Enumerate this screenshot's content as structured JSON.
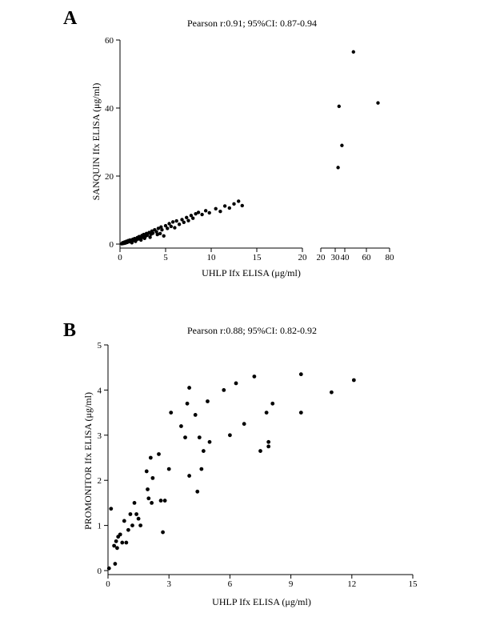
{
  "chart_data": [
    {
      "type": "scatter",
      "panel": "A",
      "title": "Pearson r:0.91; 95%CI: 0.87-0.94",
      "xlabel": "UHLP Ifx ELISA (μg/ml)",
      "ylabel": "SANQUIN Ifx ELISA (μg/ml)",
      "xlim_segments": [
        [
          0,
          20
        ],
        [
          20,
          80
        ]
      ],
      "x_ticks_segment1": [
        "0",
        "5",
        "10",
        "15",
        "20"
      ],
      "x_ticks_segment2": [
        "20",
        "30",
        "40",
        "60",
        "80"
      ],
      "ylim": [
        0,
        60
      ],
      "y_ticks": [
        "0",
        "20",
        "40",
        "60"
      ],
      "grid": false,
      "points": [
        [
          0.2,
          0.1
        ],
        [
          0.3,
          0.4
        ],
        [
          0.4,
          0.2
        ],
        [
          0.5,
          0.6
        ],
        [
          0.6,
          0.3
        ],
        [
          0.7,
          0.8
        ],
        [
          0.8,
          0.5
        ],
        [
          0.9,
          1.0
        ],
        [
          1.0,
          0.7
        ],
        [
          1.1,
          1.2
        ],
        [
          1.2,
          0.9
        ],
        [
          1.3,
          0.4
        ],
        [
          1.4,
          1.4
        ],
        [
          1.5,
          1.1
        ],
        [
          1.6,
          1.6
        ],
        [
          1.7,
          0.8
        ],
        [
          1.8,
          1.3
        ],
        [
          1.9,
          1.9
        ],
        [
          2.0,
          1.5
        ],
        [
          2.1,
          2.2
        ],
        [
          2.2,
          1.8
        ],
        [
          2.3,
          1.2
        ],
        [
          2.4,
          2.5
        ],
        [
          2.5,
          2.0
        ],
        [
          2.6,
          2.8
        ],
        [
          2.7,
          1.7
        ],
        [
          2.8,
          2.3
        ],
        [
          2.9,
          3.1
        ],
        [
          3.0,
          2.6
        ],
        [
          3.2,
          3.4
        ],
        [
          3.3,
          2.0
        ],
        [
          3.4,
          2.9
        ],
        [
          3.5,
          3.8
        ],
        [
          3.6,
          3.2
        ],
        [
          3.8,
          4.2
        ],
        [
          4.0,
          3.6
        ],
        [
          4.1,
          2.8
        ],
        [
          4.2,
          4.6
        ],
        [
          4.4,
          3.1
        ],
        [
          4.5,
          5.0
        ],
        [
          4.6,
          4.2
        ],
        [
          4.8,
          2.4
        ],
        [
          5.0,
          5.4
        ],
        [
          5.2,
          4.6
        ],
        [
          5.4,
          6.0
        ],
        [
          5.6,
          5.2
        ],
        [
          5.8,
          6.5
        ],
        [
          6.0,
          4.8
        ],
        [
          6.2,
          6.8
        ],
        [
          6.5,
          5.8
        ],
        [
          6.8,
          7.2
        ],
        [
          7.0,
          6.4
        ],
        [
          7.3,
          7.8
        ],
        [
          7.5,
          6.9
        ],
        [
          7.8,
          8.4
        ],
        [
          8.0,
          7.6
        ],
        [
          8.3,
          8.9
        ],
        [
          8.6,
          9.3
        ],
        [
          9.0,
          8.7
        ],
        [
          9.4,
          9.8
        ],
        [
          9.8,
          9.2
        ],
        [
          10.5,
          10.4
        ],
        [
          11.0,
          9.6
        ],
        [
          11.5,
          11.2
        ],
        [
          12.0,
          10.6
        ],
        [
          12.5,
          11.8
        ],
        [
          13.0,
          12.6
        ],
        [
          13.4,
          11.3
        ],
        [
          33,
          22.5
        ],
        [
          34,
          40.5
        ],
        [
          37,
          29
        ],
        [
          48,
          56.5
        ],
        [
          70,
          41.5
        ]
      ]
    },
    {
      "type": "scatter",
      "panel": "B",
      "title": "Pearson r:0.88; 95%CI: 0.82-0.92",
      "xlabel": "UHLP Ifx ELISA (μg/ml)",
      "ylabel": "PROMONITOR Ifx ELISA (μg/ml)",
      "xlim": [
        0,
        15
      ],
      "x_ticks": [
        "0",
        "3",
        "6",
        "9",
        "12",
        "15"
      ],
      "ylim": [
        0,
        5
      ],
      "y_ticks": [
        "0",
        "1",
        "2",
        "3",
        "4",
        "5"
      ],
      "grid": false,
      "points": [
        [
          0.05,
          0.05
        ],
        [
          0.15,
          1.37
        ],
        [
          0.3,
          0.55
        ],
        [
          0.35,
          0.15
        ],
        [
          0.4,
          0.65
        ],
        [
          0.45,
          0.5
        ],
        [
          0.5,
          0.75
        ],
        [
          0.6,
          0.8
        ],
        [
          0.7,
          0.62
        ],
        [
          0.8,
          1.1
        ],
        [
          0.9,
          0.62
        ],
        [
          1.0,
          0.9
        ],
        [
          1.1,
          1.25
        ],
        [
          1.2,
          1.0
        ],
        [
          1.3,
          1.5
        ],
        [
          1.4,
          1.25
        ],
        [
          1.5,
          1.15
        ],
        [
          1.6,
          1.0
        ],
        [
          1.9,
          2.2
        ],
        [
          1.95,
          1.8
        ],
        [
          2.0,
          1.6
        ],
        [
          2.1,
          2.5
        ],
        [
          2.15,
          1.5
        ],
        [
          2.2,
          2.05
        ],
        [
          2.5,
          2.58
        ],
        [
          2.6,
          1.55
        ],
        [
          2.7,
          0.85
        ],
        [
          2.8,
          1.55
        ],
        [
          3.0,
          2.25
        ],
        [
          3.1,
          3.5
        ],
        [
          3.6,
          3.2
        ],
        [
          3.8,
          2.95
        ],
        [
          3.9,
          3.7
        ],
        [
          4.0,
          4.05
        ],
        [
          4.0,
          2.1
        ],
        [
          4.3,
          3.45
        ],
        [
          4.4,
          1.75
        ],
        [
          4.5,
          2.95
        ],
        [
          4.6,
          2.25
        ],
        [
          4.7,
          2.65
        ],
        [
          4.9,
          3.75
        ],
        [
          5.0,
          2.85
        ],
        [
          5.7,
          4.0
        ],
        [
          6.0,
          3.0
        ],
        [
          6.3,
          4.15
        ],
        [
          6.7,
          3.25
        ],
        [
          7.2,
          4.3
        ],
        [
          7.5,
          2.65
        ],
        [
          7.8,
          3.5
        ],
        [
          7.9,
          2.85
        ],
        [
          7.9,
          2.75
        ],
        [
          8.1,
          3.7
        ],
        [
          9.5,
          4.35
        ],
        [
          9.5,
          3.5
        ],
        [
          11.0,
          3.95
        ],
        [
          12.1,
          4.22
        ]
      ]
    }
  ],
  "panel_letters": [
    "A",
    "B"
  ]
}
